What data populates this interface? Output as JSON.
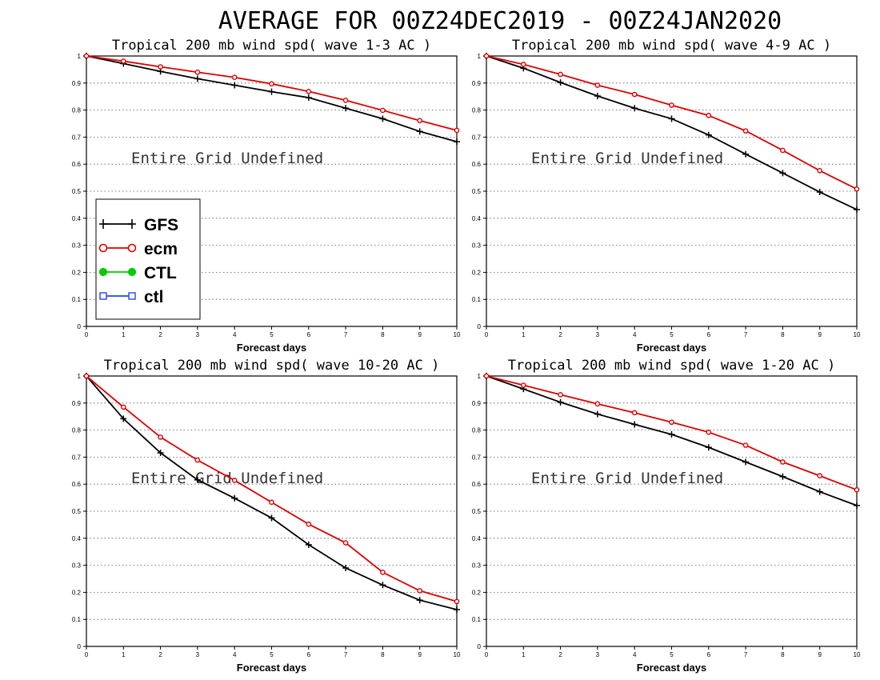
{
  "title": "AVERAGE FOR 00Z24DEC2019 - 00Z24JAN2020",
  "overlay_text": "Entire Grid Undefined",
  "legend": [
    {
      "name": "GFS",
      "color": "#000000",
      "marker": "plus"
    },
    {
      "name": "ecm",
      "color": "#dd0000",
      "marker": "circle"
    },
    {
      "name": "CTL",
      "color": "#00cc00",
      "marker": "filled-circle"
    },
    {
      "name": "ctl",
      "color": "#2244ee",
      "marker": "square"
    }
  ],
  "chart_data": [
    {
      "type": "line",
      "title": "Tropical 200 mb wind spd( wave 1-3 AC )",
      "xlabel": "Forecast days",
      "ylabel": "",
      "xlim": [
        0,
        10
      ],
      "ylim": [
        0,
        1
      ],
      "x": [
        0,
        1,
        2,
        3,
        4,
        5,
        6,
        7,
        8,
        9,
        10
      ],
      "xticks": [
        "0",
        "1",
        "2",
        "3",
        "4",
        "5",
        "6",
        "7",
        "8",
        "9",
        "10"
      ],
      "yticks": [
        "0",
        "0.1",
        "0.2",
        "0.3",
        "0.4",
        "0.5",
        "0.6",
        "0.7",
        "0.8",
        "0.9",
        "1"
      ],
      "grid": true,
      "series": [
        {
          "name": "GFS",
          "values": [
            1.0,
            0.972,
            0.943,
            0.916,
            0.892,
            0.868,
            0.846,
            0.807,
            0.768,
            0.721,
            0.683
          ]
        },
        {
          "name": "ecm",
          "values": [
            1.0,
            0.981,
            0.96,
            0.94,
            0.921,
            0.897,
            0.869,
            0.836,
            0.799,
            0.761,
            0.725
          ]
        }
      ]
    },
    {
      "type": "line",
      "title": "Tropical 200 mb wind spd( wave 4-9 AC )",
      "xlabel": "Forecast days",
      "ylabel": "",
      "xlim": [
        0,
        10
      ],
      "ylim": [
        0,
        1
      ],
      "x": [
        0,
        1,
        2,
        3,
        4,
        5,
        6,
        7,
        8,
        9,
        10
      ],
      "xticks": [
        "0",
        "1",
        "2",
        "3",
        "4",
        "5",
        "6",
        "7",
        "8",
        "9",
        "10"
      ],
      "yticks": [
        "0",
        "0.1",
        "0.2",
        "0.3",
        "0.4",
        "0.5",
        "0.6",
        "0.7",
        "0.8",
        "0.9",
        "1"
      ],
      "grid": true,
      "series": [
        {
          "name": "GFS",
          "values": [
            1.0,
            0.955,
            0.902,
            0.852,
            0.807,
            0.768,
            0.708,
            0.637,
            0.567,
            0.497,
            0.432
          ]
        },
        {
          "name": "ecm",
          "values": [
            1.0,
            0.969,
            0.932,
            0.892,
            0.858,
            0.818,
            0.78,
            0.723,
            0.651,
            0.576,
            0.508
          ]
        }
      ]
    },
    {
      "type": "line",
      "title": "Tropical 200 mb wind spd( wave 10-20 AC )",
      "xlabel": "Forecast days",
      "ylabel": "",
      "xlim": [
        0,
        10
      ],
      "ylim": [
        0,
        1
      ],
      "x": [
        0,
        1,
        2,
        3,
        4,
        5,
        6,
        7,
        8,
        9,
        10
      ],
      "xticks": [
        "0",
        "1",
        "2",
        "3",
        "4",
        "5",
        "6",
        "7",
        "8",
        "9",
        "10"
      ],
      "yticks": [
        "0",
        "0.1",
        "0.2",
        "0.3",
        "0.4",
        "0.5",
        "0.6",
        "0.7",
        "0.8",
        "0.9",
        "1"
      ],
      "grid": true,
      "series": [
        {
          "name": "GFS",
          "values": [
            1.0,
            0.842,
            0.716,
            0.616,
            0.548,
            0.475,
            0.376,
            0.29,
            0.227,
            0.171,
            0.136
          ]
        },
        {
          "name": "ecm",
          "values": [
            1.0,
            0.885,
            0.774,
            0.689,
            0.614,
            0.533,
            0.452,
            0.383,
            0.274,
            0.206,
            0.166
          ]
        }
      ]
    },
    {
      "type": "line",
      "title": "Tropical 200 mb wind spd( wave 1-20 AC )",
      "xlabel": "Forecast days",
      "ylabel": "",
      "xlim": [
        0,
        10
      ],
      "ylim": [
        0,
        1
      ],
      "x": [
        0,
        1,
        2,
        3,
        4,
        5,
        6,
        7,
        8,
        9,
        10
      ],
      "xticks": [
        "0",
        "1",
        "2",
        "3",
        "4",
        "5",
        "6",
        "7",
        "8",
        "9",
        "10"
      ],
      "yticks": [
        "0",
        "0.1",
        "0.2",
        "0.3",
        "0.4",
        "0.5",
        "0.6",
        "0.7",
        "0.8",
        "0.9",
        "1"
      ],
      "grid": true,
      "series": [
        {
          "name": "GFS",
          "values": [
            1.0,
            0.952,
            0.903,
            0.859,
            0.821,
            0.784,
            0.736,
            0.682,
            0.628,
            0.572,
            0.521
          ]
        },
        {
          "name": "ecm",
          "values": [
            1.0,
            0.966,
            0.931,
            0.897,
            0.864,
            0.829,
            0.792,
            0.744,
            0.682,
            0.631,
            0.579
          ]
        }
      ]
    }
  ]
}
